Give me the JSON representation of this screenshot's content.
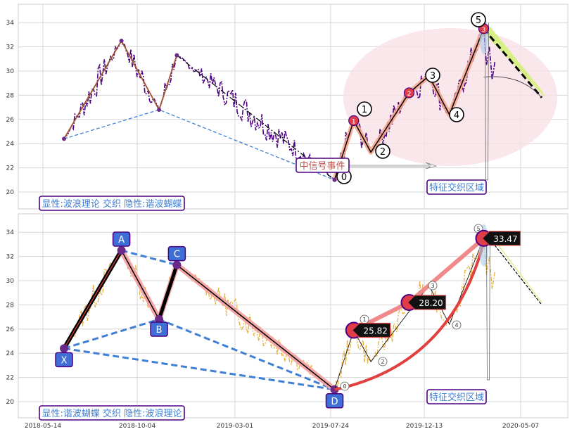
{
  "chart_data": [
    {
      "type": "line",
      "panel": "top",
      "ylim": [
        18.8,
        35.5
      ],
      "yticks": [
        "20",
        "22",
        "24",
        "26",
        "28",
        "30",
        "32",
        "34"
      ],
      "grid": true,
      "colors": {
        "price": "#4b0082",
        "wave": "#c0504d",
        "harmonic_lines": "#3f7fd6",
        "trend": "#000000",
        "ellipse": "#f8e0e6",
        "projection": "#d4ef7a"
      },
      "wave_points": [
        {
          "x": "2018-06-15",
          "y": 24.4
        },
        {
          "x": "2018-09-10",
          "y": 32.5
        },
        {
          "x": "2018-11-06",
          "y": 26.8
        },
        {
          "x": "2018-12-03",
          "y": 31.3
        },
        {
          "x": "2019-07-30",
          "y": 21.0
        },
        {
          "x": "2019-08-28",
          "y": 25.9
        },
        {
          "x": "2019-09-23",
          "y": 23.3
        },
        {
          "x": "2019-11-20",
          "y": 28.2
        },
        {
          "x": "2019-12-20",
          "y": 29.6
        },
        {
          "x": "2020-01-20",
          "y": 26.4
        },
        {
          "x": "2020-03-12",
          "y": 33.5
        }
      ],
      "wave_labels": [
        "0",
        "1",
        "2",
        "3",
        "4",
        "5"
      ],
      "annotations": {
        "signal": "中信号事件",
        "zone": "特征交织区域",
        "legend": "显性:波浪理论 交织 隐性:谐波蝴蝶"
      }
    },
    {
      "type": "line",
      "panel": "bottom",
      "ylim": [
        18.8,
        35.5
      ],
      "yticks": [
        "20",
        "22",
        "24",
        "26",
        "28",
        "30",
        "32",
        "34"
      ],
      "grid": true,
      "colors": {
        "price": "#e8b040",
        "harmonic": "#3f7fd6",
        "legs": "#000000",
        "highlight": "#f4a5a5",
        "arrow": "#e04040"
      },
      "pattern_points": [
        {
          "label": "X",
          "x": "2018-06-15",
          "y": 24.4
        },
        {
          "label": "A",
          "x": "2018-09-10",
          "y": 32.5
        },
        {
          "label": "B",
          "x": "2018-11-06",
          "y": 26.8
        },
        {
          "label": "C",
          "x": "2018-12-03",
          "y": 31.3
        },
        {
          "label": "D",
          "x": "2019-07-30",
          "y": 21.0
        }
      ],
      "price_labels": [
        "25.82",
        "28.20",
        "33.47"
      ],
      "annotations": {
        "zone": "特征交织区域",
        "legend": "显性:谐波蝴蝶 交织 隐性:波浪理论"
      }
    }
  ],
  "x_axis": {
    "ticks": [
      "2018-05-14",
      "2018-10-04",
      "2019-03-01",
      "2019-07-24",
      "2019-12-13",
      "2020-05-07"
    ]
  }
}
